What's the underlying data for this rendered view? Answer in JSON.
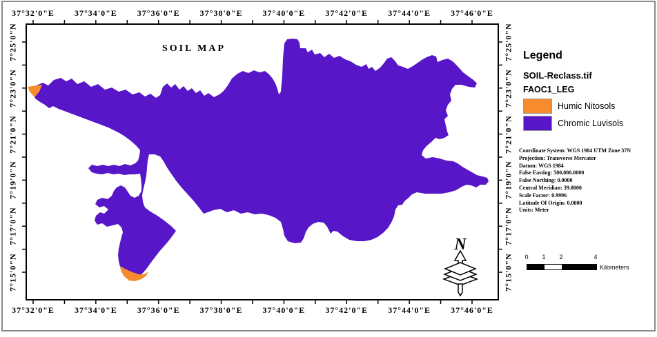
{
  "map_title": "SOIL MAP",
  "axes": {
    "lon_labels": [
      "37°32'0\"E",
      "37°34'0\"E",
      "37°36'0\"E",
      "37°38'0\"E",
      "37°40'0\"E",
      "37°42'0\"E",
      "37°44'0\"E",
      "37°46'0\"E"
    ],
    "lat_labels": [
      "7°25'0\"N",
      "7°23'0\"N",
      "7°21'0\"N",
      "7°19'0\"N",
      "7°17'0\"N",
      "7°15'0\"N"
    ]
  },
  "legend": {
    "heading": "Legend",
    "layer_name": "SOIL-Reclass.tif",
    "field_name": "FAOC1_LEG",
    "classes": [
      {
        "label": "Humic Nitosols",
        "color": "#F68C2E"
      },
      {
        "label": "Chromic Luvisols",
        "color": "#5717C9"
      }
    ]
  },
  "projection_info": [
    "Coordinate System: WGS 1984 UTM Zone 37N",
    "Projection: Transverse Mercator",
    "Datum: WGS 1984",
    "False Easting: 500,000.0000",
    "False Northing: 0.0000",
    "Central Meridian: 39.0000",
    "Scale Factor: 0.9996",
    "Latitude Of Origin: 0.0000",
    "Units: Meter"
  ],
  "scale_bar": {
    "tick_values": [
      "0",
      "1",
      "2",
      "4"
    ],
    "unit_label": "Kilometers"
  },
  "north_arrow_label": "N",
  "colors": {
    "chromic_luvisols": "#5717C9",
    "humic_nitosols": "#F68C2E",
    "frame": "#000000"
  }
}
